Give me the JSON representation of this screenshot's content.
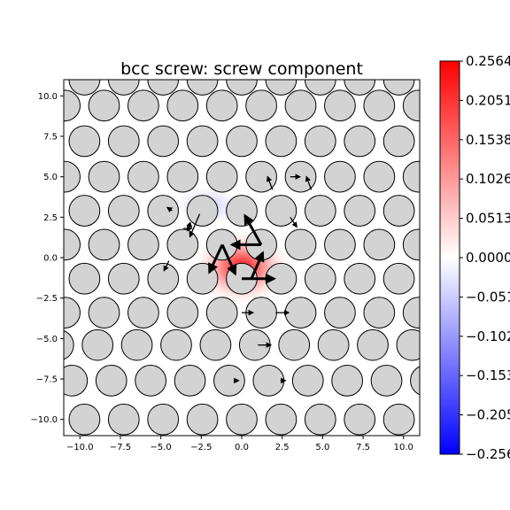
{
  "chart_data": {
    "type": "heatmap",
    "title": "bcc screw: screw component",
    "xlim": [
      -11,
      11
    ],
    "ylim": [
      -11,
      11
    ],
    "x_ticks": [
      -10.0,
      -7.5,
      -5.0,
      -2.5,
      0.0,
      2.5,
      5.0,
      7.5,
      10.0
    ],
    "y_ticks": [
      -10.0,
      -7.5,
      -5.0,
      -2.5,
      0.0,
      2.5,
      5.0,
      7.5,
      10.0
    ],
    "x_tick_labels": [
      "−10.0",
      "−7.5",
      "−5.0",
      "−2.5",
      "0.0",
      "2.5",
      "5.0",
      "7.5",
      "10.0"
    ],
    "y_tick_labels": [
      "−10.0",
      "−7.5",
      "−5.0",
      "−2.5",
      "0.0",
      "2.5",
      "5.0",
      "7.5",
      "10.0"
    ],
    "colorbar": {
      "colormap": "bwr",
      "range": [
        -0.2564,
        0.2564
      ],
      "ticks": [
        0.2564,
        0.2051,
        0.1538,
        0.1026,
        0.0513,
        0.0,
        -0.0513,
        -0.1026,
        -0.1538,
        -0.2051,
        -0.2564
      ],
      "tick_labels": [
        "0.2564",
        "0.2051",
        "0.1538",
        "0.1026",
        "0.0513",
        "0.0000",
        "−0.0513",
        "−0.1026",
        "−0.1538",
        "−0.2051",
        "−0.2564"
      ]
    },
    "atoms": {
      "row_y": [
        -10.0,
        -7.6,
        -5.4,
        -3.4,
        -1.3,
        0.8,
        2.9,
        5.0,
        7.2,
        9.4,
        11.0
      ],
      "lattice_dx": 2.43,
      "row_x_offset": [
        0.0,
        -0.77,
        -1.62,
        -1.22,
        0.0,
        -1.22,
        0.0,
        -1.22,
        0.0,
        -1.22,
        0.0
      ],
      "color": "#d3d3d3",
      "edge_color": "#000000"
    },
    "field": [
      {
        "sign": "positive",
        "x": 0.0,
        "y": -0.6,
        "sx": 3.2,
        "sy": 2.4,
        "amplitude": 0.26
      },
      {
        "sign": "negative",
        "x": -2.1,
        "y": 3.2,
        "sx": 2.2,
        "sy": 1.3,
        "amplitude": 0.07
      }
    ],
    "arrows": [
      {
        "x": 0.0,
        "y": -1.3,
        "dx": 2.0,
        "dy": 0.0,
        "weight": "strong"
      },
      {
        "x": 0.6,
        "y": -1.3,
        "dx": 0.7,
        "dy": 1.6,
        "weight": "strong"
      },
      {
        "x": 1.2,
        "y": 0.8,
        "dx": -1.0,
        "dy": 1.8,
        "weight": "strong"
      },
      {
        "x": 1.2,
        "y": 0.8,
        "dx": -1.8,
        "dy": 0.0,
        "weight": "strong"
      },
      {
        "x": -1.2,
        "y": 0.8,
        "dx": 0.8,
        "dy": -1.8,
        "weight": "strong"
      },
      {
        "x": -1.2,
        "y": 0.8,
        "dx": -0.8,
        "dy": -1.7,
        "weight": "strong"
      },
      {
        "x": -2.6,
        "y": 2.7,
        "dx": -0.6,
        "dy": -1.4,
        "weight": "light"
      },
      {
        "x": -3.6,
        "y": 1.8,
        "dx": 0.5,
        "dy": 0.0,
        "weight": "light"
      },
      {
        "x": -4.5,
        "y": -0.2,
        "dx": -0.3,
        "dy": -0.6,
        "weight": "light"
      },
      {
        "x": 0.0,
        "y": -3.4,
        "dx": 0.7,
        "dy": 0.0,
        "weight": "light"
      },
      {
        "x": 2.1,
        "y": -3.4,
        "dx": 0.8,
        "dy": 0.0,
        "weight": "light"
      },
      {
        "x": 1.0,
        "y": -5.4,
        "dx": 0.8,
        "dy": 0.0,
        "weight": "light"
      },
      {
        "x": 1.9,
        "y": 4.2,
        "dx": -0.3,
        "dy": 0.8,
        "weight": "light"
      },
      {
        "x": 4.3,
        "y": 4.2,
        "dx": -0.3,
        "dy": 0.8,
        "weight": "light"
      },
      {
        "x": 3.0,
        "y": 2.5,
        "dx": 0.4,
        "dy": -0.6,
        "weight": "light"
      },
      {
        "x": 3.0,
        "y": 5.0,
        "dx": 0.6,
        "dy": 0.0,
        "weight": "light"
      },
      {
        "x": -0.5,
        "y": -7.6,
        "dx": 0.3,
        "dy": 0.0,
        "weight": "light"
      },
      {
        "x": 2.4,
        "y": -7.6,
        "dx": 0.3,
        "dy": 0.0,
        "weight": "light"
      },
      {
        "x": -4.3,
        "y": 2.9,
        "dx": -0.3,
        "dy": 0.2,
        "weight": "light"
      },
      {
        "x": -3.3,
        "y": 2.1,
        "dx": 0.2,
        "dy": -0.2,
        "weight": "light"
      }
    ]
  }
}
